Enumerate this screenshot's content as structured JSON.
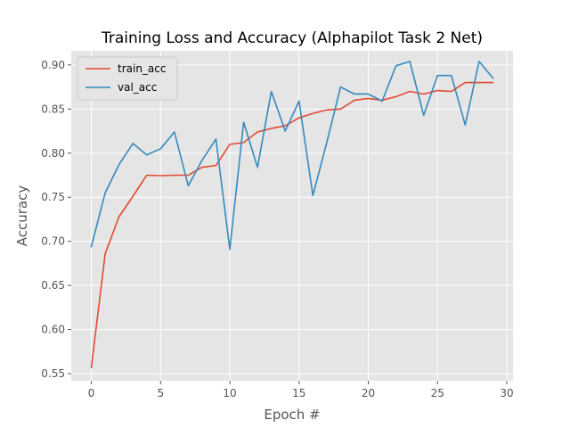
{
  "chart_data": {
    "type": "line",
    "title": "Training Loss and Accuracy (Alphapilot Task 2 Net)",
    "xlabel": "Epoch #",
    "ylabel": "Accuracy",
    "xlim": [
      -1.45,
      30.45
    ],
    "ylim": [
      0.542,
      0.916
    ],
    "x_ticks": [
      0,
      5,
      10,
      15,
      20,
      25,
      30
    ],
    "y_ticks": [
      0.55,
      0.6,
      0.65,
      0.7,
      0.75,
      0.8,
      0.85,
      0.9
    ],
    "y_tick_labels": [
      "0.55",
      "0.60",
      "0.65",
      "0.70",
      "0.75",
      "0.80",
      "0.85",
      "0.90"
    ],
    "grid": true,
    "legend_position": "upper-left",
    "x": [
      0,
      1,
      2,
      3,
      4,
      5,
      6,
      7,
      8,
      9,
      10,
      11,
      12,
      13,
      14,
      15,
      16,
      17,
      18,
      19,
      20,
      21,
      22,
      23,
      24,
      25,
      26,
      27,
      28,
      29
    ],
    "series": [
      {
        "name": "train_acc",
        "color": "#E24A33",
        "values": [
          0.557,
          0.686,
          0.728,
          0.751,
          0.775,
          0.7745,
          0.775,
          0.775,
          0.784,
          0.786,
          0.81,
          0.812,
          0.824,
          0.828,
          0.831,
          0.84,
          0.845,
          0.849,
          0.85,
          0.86,
          0.862,
          0.86,
          0.864,
          0.87,
          0.867,
          0.871,
          0.87,
          0.88,
          0.88,
          0.88
        ]
      },
      {
        "name": "val_acc",
        "color": "#348ABD",
        "values": [
          0.694,
          0.755,
          0.787,
          0.811,
          0.798,
          0.805,
          0.824,
          0.763,
          0.792,
          0.816,
          0.691,
          0.835,
          0.784,
          0.87,
          0.825,
          0.859,
          0.752,
          0.812,
          0.875,
          0.867,
          0.867,
          0.859,
          0.899,
          0.904,
          0.843,
          0.888,
          0.888,
          0.832,
          0.904,
          0.885
        ]
      }
    ]
  }
}
